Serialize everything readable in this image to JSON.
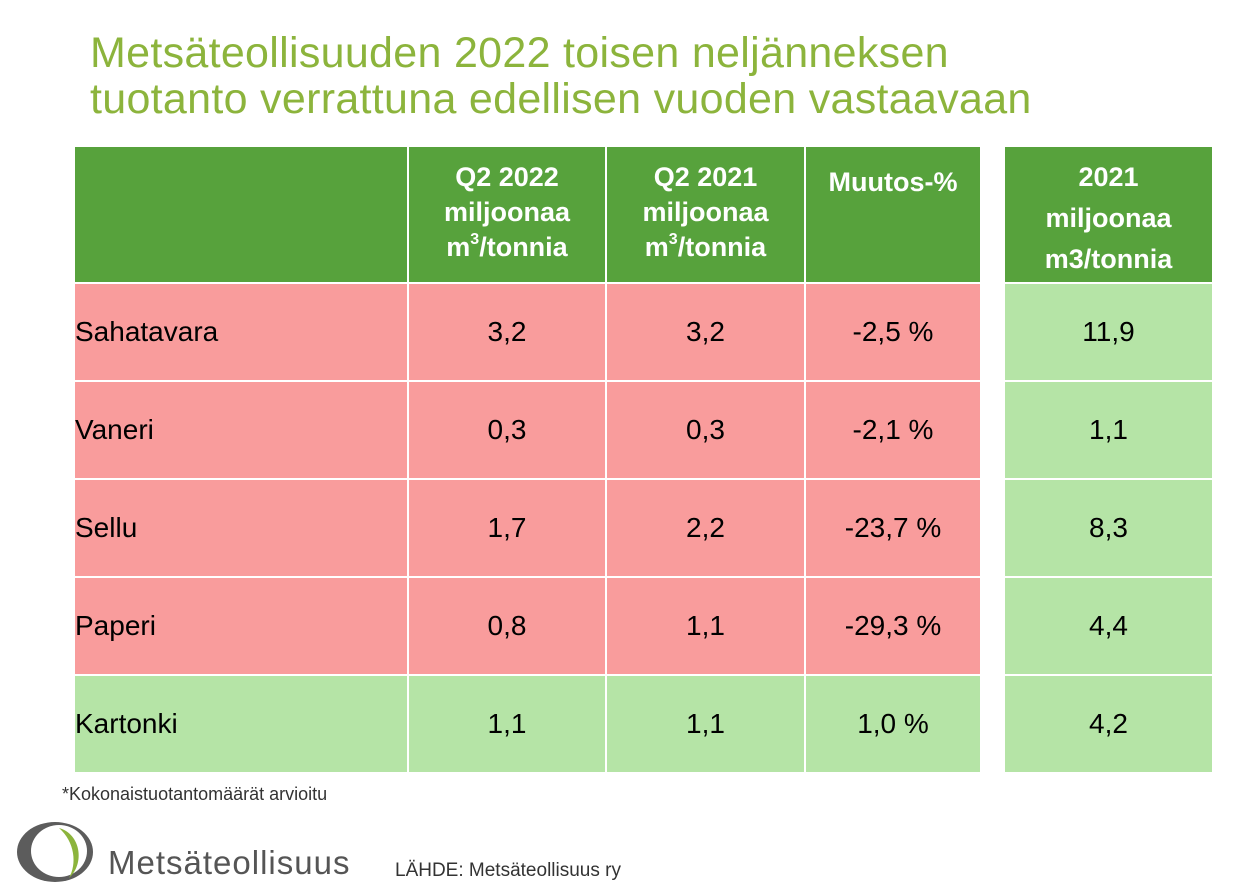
{
  "title": {
    "line1": "Metsäteollisuuden 2022 toisen neljänneksen",
    "line2": "tuotanto verrattuna edellisen vuoden vastaavaan"
  },
  "table": {
    "headers": {
      "label": "",
      "q2_2022": {
        "line1": "Q2 2022",
        "line2": "miljoonaa",
        "unit_base": "m",
        "unit_sup": "3",
        "unit_rest": "/tonnia"
      },
      "q2_2021": {
        "line1": "Q2 2021",
        "line2": "miljoonaa",
        "unit_base": "m",
        "unit_sup": "3",
        "unit_rest": "/tonnia"
      },
      "change": "Muutos-%"
    },
    "rows": [
      {
        "label": "Sahatavara",
        "q2_2022": "3,2",
        "q2_2021": "3,2",
        "change": "-2,5 %",
        "status": "negative"
      },
      {
        "label": "Vaneri",
        "q2_2022": "0,3",
        "q2_2021": "0,3",
        "change": "-2,1 %",
        "status": "negative"
      },
      {
        "label": "Sellu",
        "q2_2022": "1,7",
        "q2_2021": "2,2",
        "change": "-23,7 %",
        "status": "negative"
      },
      {
        "label": "Paperi",
        "q2_2022": "0,8",
        "q2_2021": "1,1",
        "change": "-29,3 %",
        "status": "negative"
      },
      {
        "label": "Kartonki",
        "q2_2022": "1,1",
        "q2_2021": "1,1",
        "change": "1,0 %",
        "status": "positive"
      }
    ]
  },
  "side_table": {
    "header": {
      "line1": "2021",
      "line2": "miljoonaa",
      "line3": "m3/tonnia"
    },
    "values": [
      "11,9",
      "1,1",
      "8,3",
      "4,4",
      "4,2"
    ]
  },
  "footnote": "*Kokonaistuotantomäärät arvioitu",
  "brand": "Metsäteollisuus",
  "source": "LÄHDE: Metsäteollisuus ry",
  "colors": {
    "title": "#8cb43c",
    "header": "#57a23c",
    "negative": "#f99c9c",
    "positive": "#b5e4a6"
  }
}
